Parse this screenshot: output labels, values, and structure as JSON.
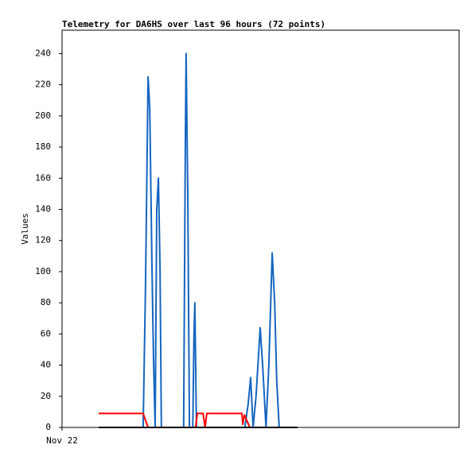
{
  "chart_data": {
    "type": "line",
    "title": "Telemetry for DA6HS over last 96 hours (72 points)",
    "y_label": "Values",
    "xlim": [
      0,
      96
    ],
    "xticks": [
      {
        "value": 0,
        "label": "Nov 22"
      }
    ],
    "ylim": [
      0,
      255
    ],
    "yticks": [
      0,
      20,
      40,
      60,
      80,
      100,
      120,
      140,
      160,
      180,
      200,
      220,
      240
    ],
    "grid": false,
    "series": [
      {
        "color": "#1565c0",
        "x": [
          19.6,
          20.2,
          20.8,
          21.2,
          21.7,
          22.1,
          22.5,
          22.9,
          23.3,
          23.7,
          24.0,
          29.4,
          29.8,
          30.0,
          30.4,
          30.8,
          31.6,
          31.9,
          32.1,
          32.5,
          44.2,
          45.0,
          45.6,
          46.2,
          46.9,
          47.9,
          48.5,
          49.3,
          50.0,
          50.8,
          51.4,
          51.9,
          52.5
        ],
        "values": [
          0,
          95,
          225,
          205,
          110,
          45,
          0,
          140,
          160,
          100,
          0,
          0,
          180,
          240,
          150,
          0,
          0,
          60,
          80,
          0,
          0,
          15,
          32,
          0,
          20,
          64,
          40,
          0,
          40,
          112,
          80,
          30,
          0
        ]
      },
      {
        "color": "#ff0000",
        "x": [
          8.85,
          19.6,
          20.8,
          32.3,
          32.7,
          34.1,
          34.6,
          35.0,
          43.5,
          43.7,
          44.1,
          45.4,
          56.9
        ],
        "values": [
          9,
          9,
          0,
          0,
          9,
          9,
          0,
          9,
          9,
          2,
          8,
          0,
          0
        ]
      },
      {
        "color": "#000000",
        "x": [
          8.85,
          56.9
        ],
        "values": [
          0,
          0
        ]
      }
    ]
  }
}
